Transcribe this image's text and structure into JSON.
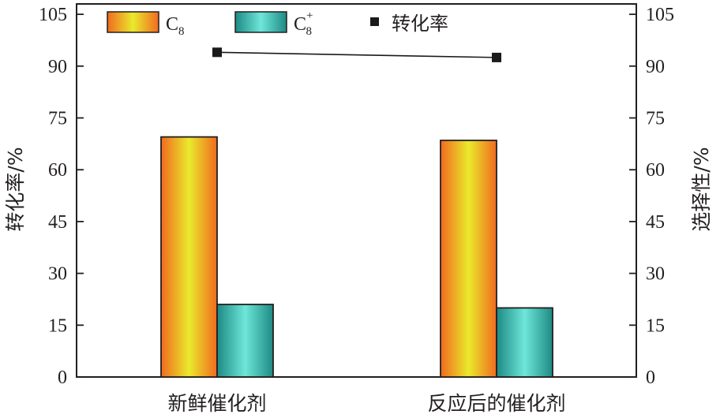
{
  "chart_data": {
    "type": "bar",
    "categories": [
      "新鲜催化剂",
      "反应后的催化剂"
    ],
    "series": [
      {
        "name": "C8",
        "values": [
          69.5,
          68.5
        ],
        "axis": "right",
        "style": "gradient-orange-yellow"
      },
      {
        "name": "C8+",
        "values": [
          21,
          20
        ],
        "axis": "right",
        "style": "gradient-teal"
      },
      {
        "name": "转化率",
        "values": [
          94,
          92.5
        ],
        "axis": "left",
        "type": "line",
        "marker": "square"
      }
    ],
    "ylabel_left": "转化率/%",
    "ylabel_right": "选择性/%",
    "ylim": [
      0,
      108
    ],
    "yticks": [
      0,
      15,
      30,
      45,
      60,
      75,
      90,
      105
    ],
    "legend": {
      "placement": "top",
      "entries": [
        {
          "base": "C",
          "sub": "8",
          "sup": ""
        },
        {
          "base": "C",
          "sub": "8",
          "sup": "+"
        },
        {
          "text": "转化率"
        }
      ]
    },
    "grid": false,
    "colors": {
      "c8_edge": "#f06a1f",
      "c8_center": "#eaea2c",
      "c8plus_edge": "#1d8a84",
      "c8plus_center": "#6ee6d8",
      "line": "#1a1a1a",
      "axis": "#231f20"
    }
  }
}
